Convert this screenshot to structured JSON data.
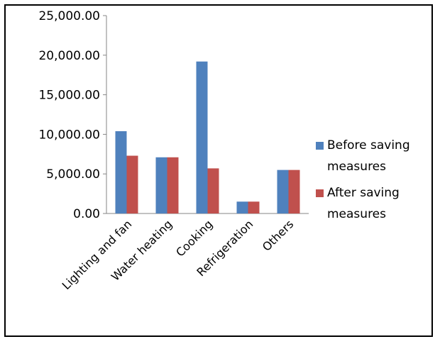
{
  "chart_data": {
    "type": "bar",
    "categories": [
      "Lighting and fan",
      "Water heating",
      "Cooking",
      "Refrigeration",
      "Others"
    ],
    "series": [
      {
        "name": "Before saving measures",
        "values": [
          10400,
          7100,
          19200,
          1500,
          5500
        ],
        "color": "#4f81bd"
      },
      {
        "name": "After saving measures",
        "values": [
          7300,
          7100,
          5700,
          1500,
          5500
        ],
        "color": "#c0504d"
      }
    ],
    "title": "",
    "xlabel": "",
    "ylabel": "",
    "ylim": [
      0,
      25000
    ],
    "yticks": [
      "0.00",
      "5,000.00",
      "10,000.00",
      "15,000.00",
      "20,000.00",
      "25,000.00"
    ],
    "grid": false,
    "legend": {
      "placement": "right",
      "entries": [
        {
          "line1": "Before saving",
          "line2": "measures",
          "color": "#4f81bd"
        },
        {
          "line1": "After saving",
          "line2": "measures",
          "color": "#c0504d"
        }
      ]
    }
  }
}
